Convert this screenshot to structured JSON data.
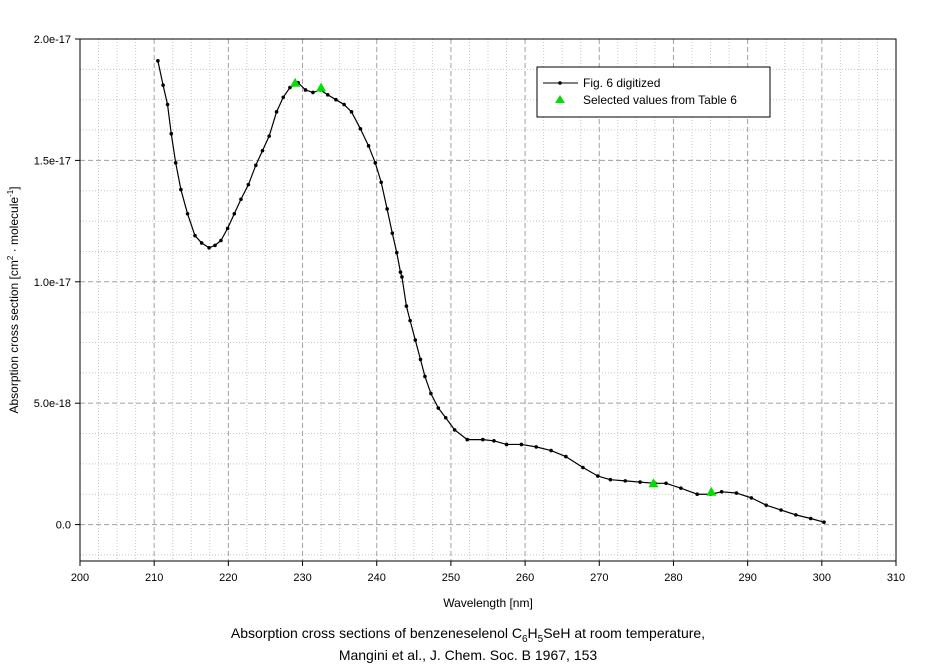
{
  "chart_data": {
    "type": "line",
    "xlabel": "Wavelength [nm]",
    "ylabel": {
      "base": "Absorption cross section [cm",
      "sup1": "2",
      "mid": " · molecule",
      "sup2": "-1",
      "end": "]"
    },
    "xlim": [
      200,
      310
    ],
    "ylim": [
      -1.5e-18,
      2e-17
    ],
    "x_ticks": [
      200,
      210,
      220,
      230,
      240,
      250,
      260,
      270,
      280,
      290,
      300,
      310
    ],
    "x_tick_labels": [
      "200",
      "210",
      "220",
      "230",
      "240",
      "250",
      "260",
      "270",
      "280",
      "290",
      "300",
      "310"
    ],
    "y_ticks": [
      0,
      5e-18,
      1e-17,
      1.5e-17,
      2e-17
    ],
    "y_tick_labels": [
      "0.0",
      "5.0e-18",
      "1.0e-17",
      "1.5e-17",
      "2.0e-17"
    ],
    "grid": true,
    "legend_position": "top-right",
    "series": [
      {
        "name": "Fig. 6 digitized",
        "kind": "line",
        "color": "#000000",
        "points": [
          [
            210.5,
            1.91e-17
          ],
          [
            211.2,
            1.81e-17
          ],
          [
            211.8,
            1.73e-17
          ],
          [
            212.3,
            1.61e-17
          ],
          [
            212.9,
            1.49e-17
          ],
          [
            213.6,
            1.38e-17
          ],
          [
            214.5,
            1.28e-17
          ],
          [
            215.5,
            1.19e-17
          ],
          [
            216.4,
            1.16e-17
          ],
          [
            217.4,
            1.14e-17
          ],
          [
            218.2,
            1.15e-17
          ],
          [
            219.0,
            1.17e-17
          ],
          [
            219.9,
            1.22e-17
          ],
          [
            220.8,
            1.28e-17
          ],
          [
            221.7,
            1.34e-17
          ],
          [
            222.7,
            1.4e-17
          ],
          [
            223.7,
            1.48e-17
          ],
          [
            224.6,
            1.54e-17
          ],
          [
            225.5,
            1.6e-17
          ],
          [
            226.5,
            1.7e-17
          ],
          [
            227.4,
            1.76e-17
          ],
          [
            228.3,
            1.8e-17
          ],
          [
            229.4,
            1.82e-17
          ],
          [
            230.4,
            1.79e-17
          ],
          [
            231.4,
            1.78e-17
          ],
          [
            232.4,
            1.79e-17
          ],
          [
            233.4,
            1.77e-17
          ],
          [
            234.5,
            1.75e-17
          ],
          [
            235.6,
            1.73e-17
          ],
          [
            236.6,
            1.7e-17
          ],
          [
            237.8,
            1.63e-17
          ],
          [
            238.9,
            1.56e-17
          ],
          [
            239.8,
            1.49e-17
          ],
          [
            240.6,
            1.41e-17
          ],
          [
            241.4,
            1.3e-17
          ],
          [
            242.1,
            1.2e-17
          ],
          [
            242.7,
            1.12e-17
          ],
          [
            243.2,
            1.04e-17
          ],
          [
            243.4,
            1.02e-17
          ],
          [
            244.0,
            9e-18
          ],
          [
            244.5,
            8.4e-18
          ],
          [
            245.2,
            7.6e-18
          ],
          [
            245.9,
            6.8e-18
          ],
          [
            246.5,
            6.1e-18
          ],
          [
            247.3,
            5.4e-18
          ],
          [
            248.3,
            4.8e-18
          ],
          [
            249.3,
            4.4e-18
          ],
          [
            250.5,
            3.9e-18
          ],
          [
            252.2,
            3.5e-18
          ],
          [
            254.3,
            3.5e-18
          ],
          [
            255.8,
            3.45e-18
          ],
          [
            257.5,
            3.3e-18
          ],
          [
            259.5,
            3.3e-18
          ],
          [
            261.5,
            3.2e-18
          ],
          [
            263.5,
            3.05e-18
          ],
          [
            265.5,
            2.8e-18
          ],
          [
            267.8,
            2.35e-18
          ],
          [
            269.8,
            2e-18
          ],
          [
            271.5,
            1.85e-18
          ],
          [
            273.5,
            1.8e-18
          ],
          [
            275.5,
            1.75e-18
          ],
          [
            277.5,
            1.7e-18
          ],
          [
            279.0,
            1.7e-18
          ],
          [
            281.0,
            1.5e-18
          ],
          [
            283.2,
            1.25e-18
          ],
          [
            285.0,
            1.25e-18
          ],
          [
            286.5,
            1.35e-18
          ],
          [
            288.5,
            1.3e-18
          ],
          [
            290.5,
            1.1e-18
          ],
          [
            292.5,
            8e-19
          ],
          [
            294.5,
            6e-19
          ],
          [
            296.5,
            4e-19
          ],
          [
            298.5,
            2.5e-19
          ],
          [
            300.3,
            1e-19
          ]
        ]
      },
      {
        "name": "Selected values from Table 6",
        "kind": "marker",
        "color": "#00e000",
        "points": [
          [
            229.0,
            1.82e-17
          ],
          [
            232.5,
            1.8e-17
          ],
          [
            277.3,
            1.7e-18
          ],
          [
            285.1,
            1.35e-18
          ]
        ]
      }
    ]
  },
  "caption": {
    "line1_pre": "Absorption cross sections of benzeneselenol C",
    "line1_sub1": "6",
    "line1_mid": "H",
    "line1_sub2": "5",
    "line1_post": "SeH at room temperature,",
    "line2": "Mangini et al., J. Chem. Soc. B 1967, 153"
  }
}
